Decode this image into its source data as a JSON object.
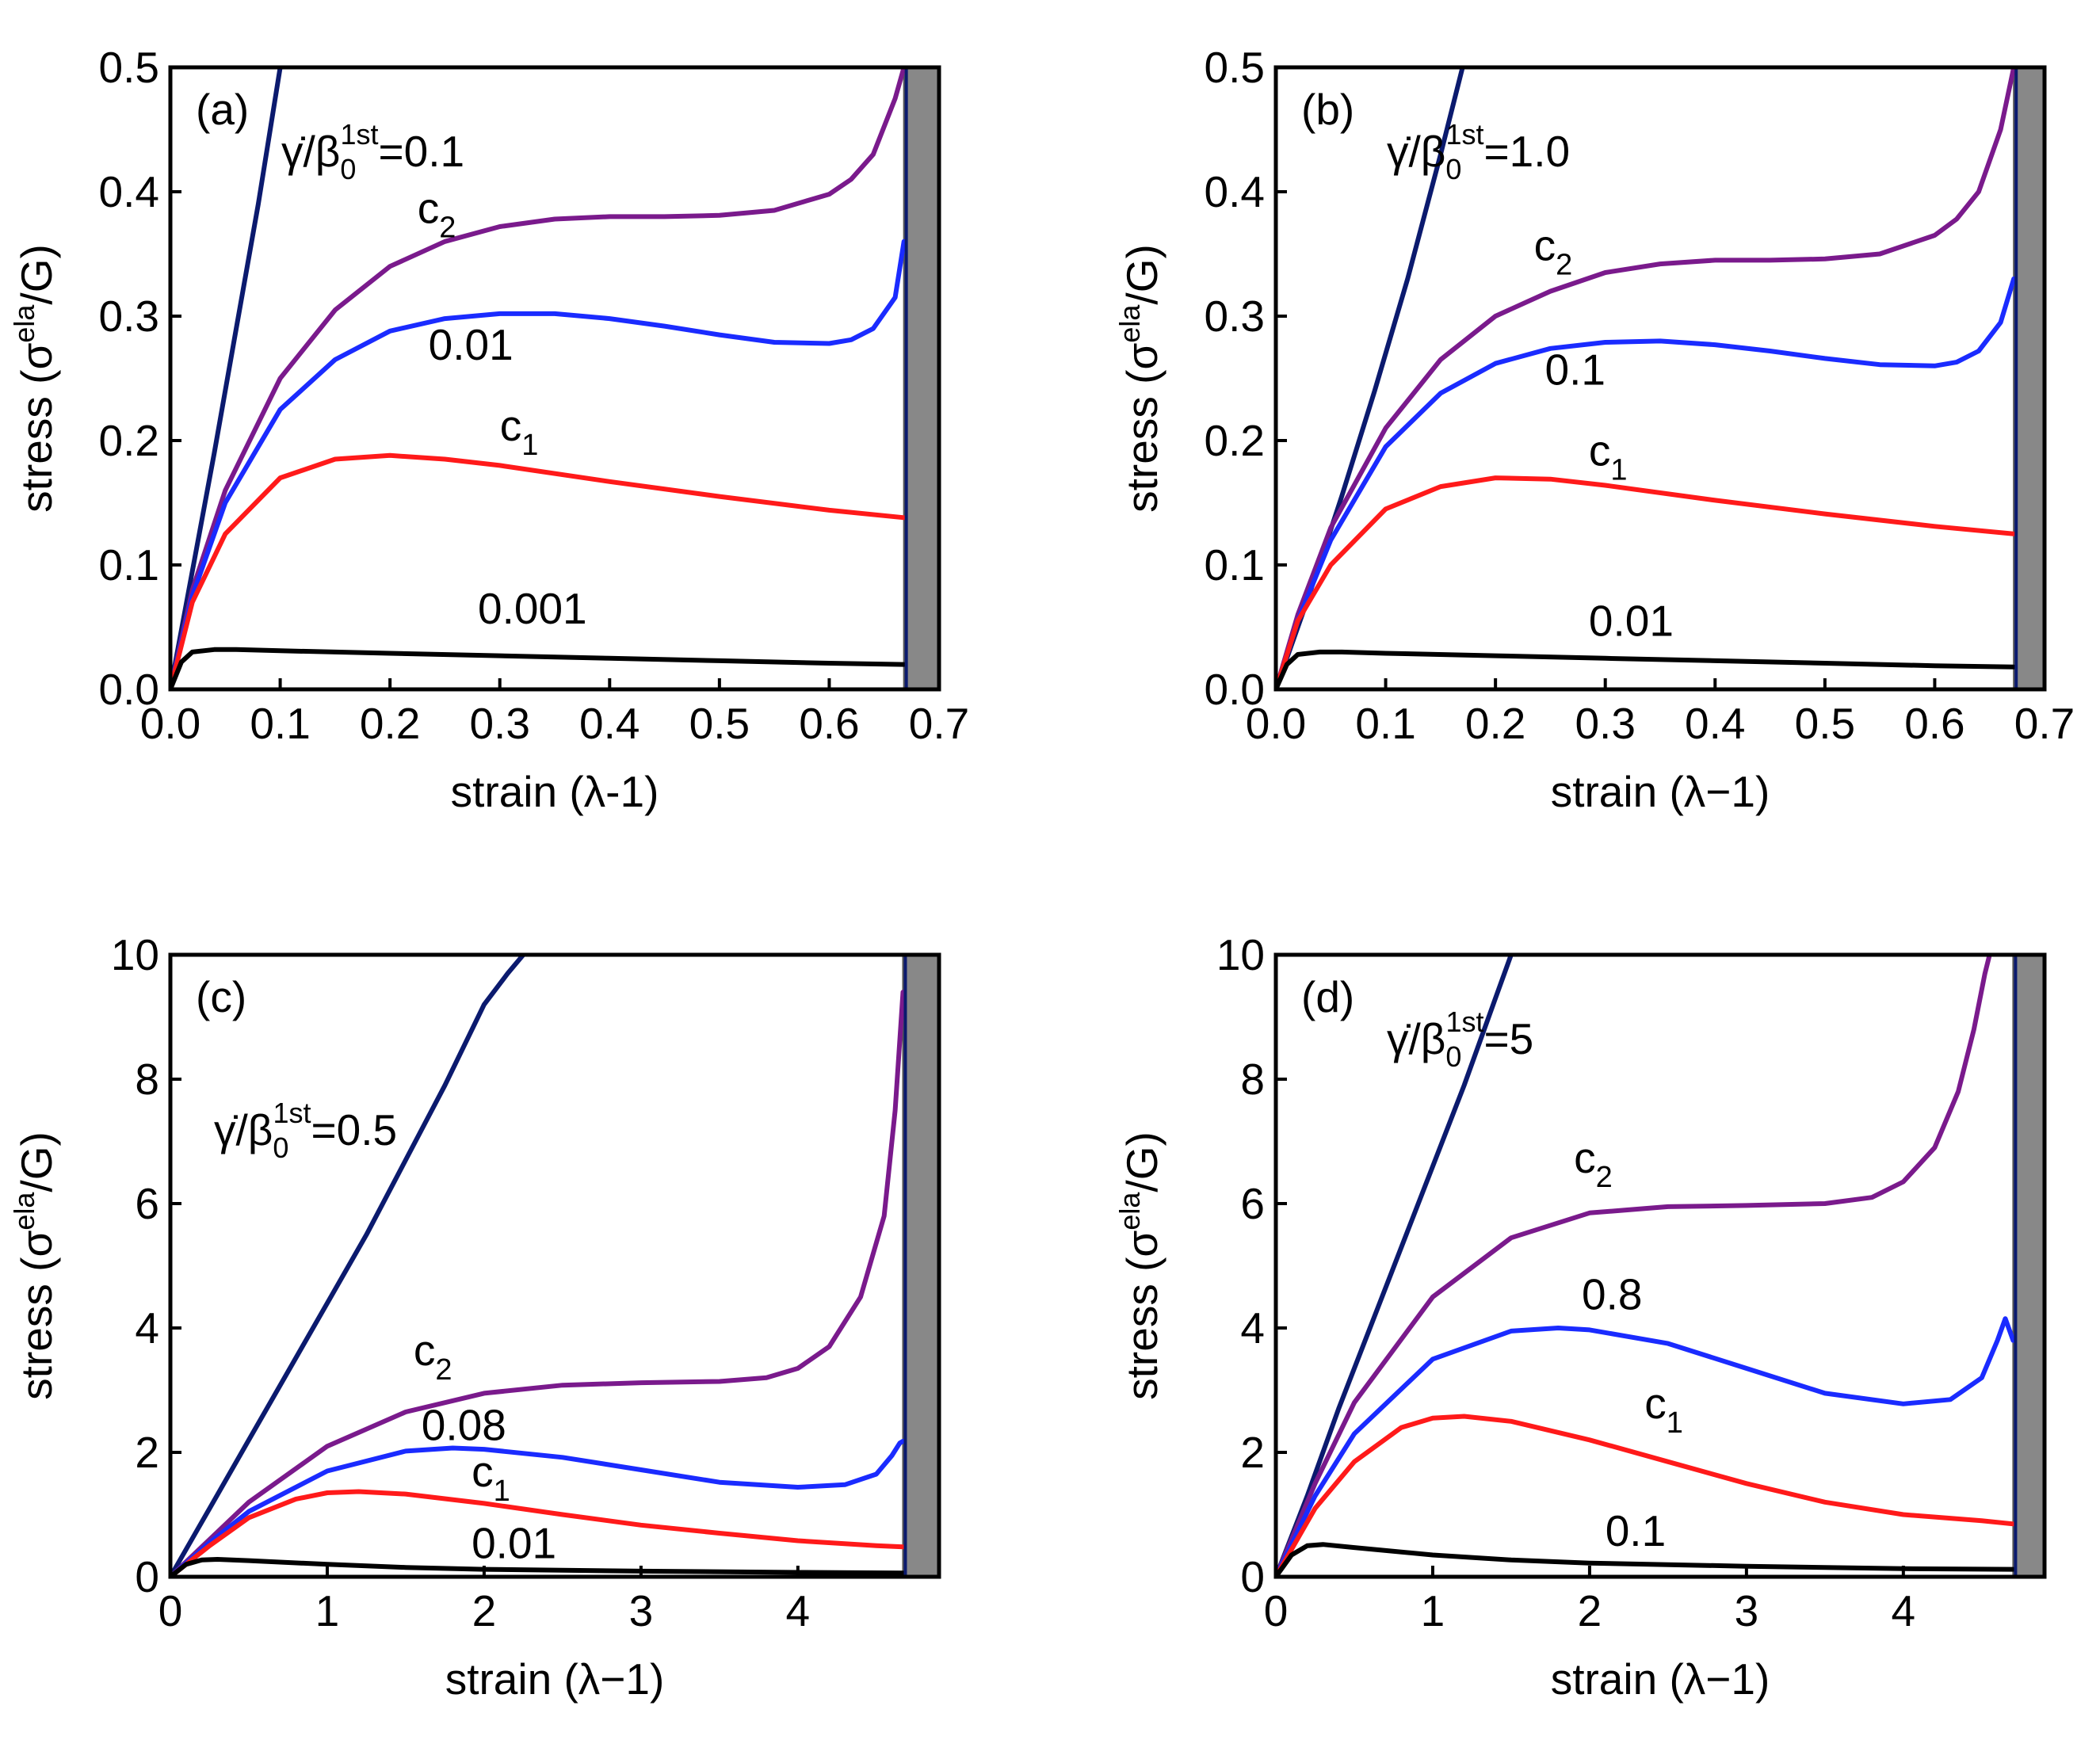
{
  "figure": "stress-strain panels",
  "colors": {
    "dark_navy": "#0b1a6e",
    "purple": "#7a1a8c",
    "blue": "#1a2bff",
    "red": "#ff1a1a",
    "black": "#000000",
    "shade": "#888888"
  },
  "chart_data": [
    {
      "type": "line",
      "panel_label": "(a)",
      "rate_label": "γ̇/β₀^1st=0.1",
      "xlabel": "strain (λ-1)",
      "ylabel": "stress (σ^ela/G)",
      "xlim": [
        0,
        0.7
      ],
      "ylim": [
        0,
        0.5
      ],
      "xticks": [
        "0.0",
        "0.1",
        "0.2",
        "0.3",
        "0.4",
        "0.5",
        "0.6",
        "0.7"
      ],
      "yticks": [
        "0.0",
        "0.1",
        "0.2",
        "0.3",
        "0.4",
        "0.5"
      ],
      "shaded_region": [
        0.668,
        0.7
      ],
      "series": [
        {
          "name": "dark",
          "color": "#0b1a6e",
          "x": [
            0,
            0.02,
            0.04,
            0.06,
            0.08,
            0.1
          ],
          "y": [
            0,
            0.095,
            0.19,
            0.29,
            0.39,
            0.5
          ]
        },
        {
          "name": "c2",
          "color": "#7a1a8c",
          "x": [
            0,
            0.02,
            0.05,
            0.1,
            0.15,
            0.2,
            0.25,
            0.3,
            0.35,
            0.4,
            0.45,
            0.5,
            0.55,
            0.6,
            0.62,
            0.64,
            0.66,
            0.668
          ],
          "y": [
            0,
            0.08,
            0.16,
            0.25,
            0.305,
            0.34,
            0.36,
            0.372,
            0.378,
            0.38,
            0.38,
            0.381,
            0.385,
            0.398,
            0.41,
            0.43,
            0.475,
            0.5
          ]
        },
        {
          "name": "0.01",
          "color": "#1a2bff",
          "x": [
            0,
            0.02,
            0.05,
            0.1,
            0.15,
            0.2,
            0.25,
            0.3,
            0.35,
            0.4,
            0.45,
            0.5,
            0.55,
            0.6,
            0.62,
            0.64,
            0.66,
            0.668
          ],
          "y": [
            0,
            0.075,
            0.15,
            0.225,
            0.265,
            0.288,
            0.298,
            0.302,
            0.302,
            0.298,
            0.292,
            0.285,
            0.279,
            0.278,
            0.281,
            0.29,
            0.315,
            0.36
          ]
        },
        {
          "name": "c1",
          "color": "#ff1a1a",
          "x": [
            0,
            0.02,
            0.05,
            0.1,
            0.15,
            0.2,
            0.25,
            0.3,
            0.4,
            0.5,
            0.6,
            0.668
          ],
          "y": [
            0,
            0.07,
            0.125,
            0.17,
            0.185,
            0.188,
            0.185,
            0.18,
            0.167,
            0.155,
            0.144,
            0.138
          ]
        },
        {
          "name": "0.001",
          "color": "#000000",
          "x": [
            0,
            0.01,
            0.02,
            0.04,
            0.06,
            0.1,
            0.2,
            0.3,
            0.4,
            0.5,
            0.6,
            0.668
          ],
          "y": [
            0,
            0.022,
            0.03,
            0.032,
            0.032,
            0.031,
            0.029,
            0.027,
            0.025,
            0.023,
            0.021,
            0.02
          ]
        }
      ],
      "labels": [
        {
          "text": "c",
          "sub": "2",
          "x": 0.225,
          "y": 0.375
        },
        {
          "text": "0.01",
          "sub": "",
          "x": 0.235,
          "y": 0.265
        },
        {
          "text": "c",
          "sub": "1",
          "x": 0.3,
          "y": 0.2
        },
        {
          "text": "0.001",
          "sub": "",
          "x": 0.28,
          "y": 0.053
        }
      ]
    },
    {
      "type": "line",
      "panel_label": "(b)",
      "rate_label": "γ̇/β₀^1st=1.0",
      "xlabel": "strain (λ−1)",
      "ylabel": "stress (σ^ela/G)",
      "xlim": [
        0,
        0.7
      ],
      "ylim": [
        0,
        0.5
      ],
      "xticks": [
        "0.0",
        "0.1",
        "0.2",
        "0.3",
        "0.4",
        "0.5",
        "0.6",
        "0.7"
      ],
      "yticks": [
        "0.0",
        "0.1",
        "0.2",
        "0.3",
        "0.4",
        "0.5"
      ],
      "shaded_region": [
        0.672,
        0.7
      ],
      "series": [
        {
          "name": "dark",
          "color": "#0b1a6e",
          "x": [
            0,
            0.03,
            0.06,
            0.09,
            0.12,
            0.15,
            0.17
          ],
          "y": [
            0,
            0.075,
            0.155,
            0.24,
            0.33,
            0.43,
            0.5
          ]
        },
        {
          "name": "c2",
          "color": "#7a1a8c",
          "x": [
            0,
            0.02,
            0.05,
            0.1,
            0.15,
            0.2,
            0.25,
            0.3,
            0.35,
            0.4,
            0.45,
            0.5,
            0.55,
            0.6,
            0.62,
            0.64,
            0.66,
            0.672
          ],
          "y": [
            0,
            0.06,
            0.13,
            0.21,
            0.265,
            0.3,
            0.32,
            0.335,
            0.342,
            0.345,
            0.345,
            0.346,
            0.35,
            0.365,
            0.378,
            0.4,
            0.45,
            0.5
          ]
        },
        {
          "name": "0.1",
          "color": "#1a2bff",
          "x": [
            0,
            0.02,
            0.05,
            0.1,
            0.15,
            0.2,
            0.25,
            0.3,
            0.35,
            0.4,
            0.45,
            0.5,
            0.55,
            0.6,
            0.62,
            0.64,
            0.66,
            0.672
          ],
          "y": [
            0,
            0.055,
            0.12,
            0.195,
            0.238,
            0.262,
            0.274,
            0.279,
            0.28,
            0.277,
            0.272,
            0.266,
            0.261,
            0.26,
            0.263,
            0.272,
            0.295,
            0.33
          ]
        },
        {
          "name": "c1",
          "color": "#ff1a1a",
          "x": [
            0,
            0.02,
            0.05,
            0.1,
            0.15,
            0.2,
            0.25,
            0.3,
            0.4,
            0.5,
            0.6,
            0.672
          ],
          "y": [
            0,
            0.055,
            0.1,
            0.145,
            0.163,
            0.17,
            0.169,
            0.164,
            0.152,
            0.141,
            0.131,
            0.125
          ]
        },
        {
          "name": "0.01",
          "color": "#000000",
          "x": [
            0,
            0.01,
            0.02,
            0.04,
            0.06,
            0.1,
            0.2,
            0.3,
            0.4,
            0.5,
            0.6,
            0.672
          ],
          "y": [
            0,
            0.02,
            0.028,
            0.03,
            0.03,
            0.029,
            0.027,
            0.025,
            0.023,
            0.021,
            0.019,
            0.018
          ]
        }
      ],
      "labels": [
        {
          "text": "c",
          "sub": "2",
          "x": 0.235,
          "y": 0.345
        },
        {
          "text": "0.1",
          "sub": "",
          "x": 0.245,
          "y": 0.245
        },
        {
          "text": "c",
          "sub": "1",
          "x": 0.285,
          "y": 0.18
        },
        {
          "text": "0.01",
          "sub": "",
          "x": 0.285,
          "y": 0.043
        }
      ]
    },
    {
      "type": "line",
      "panel_label": "(c)",
      "rate_label": "γ̇/β₀^1st=0.5",
      "xlabel": "strain (λ−1)",
      "ylabel": "stress (σ^ela/G)",
      "xlim": [
        0,
        4.9
      ],
      "ylim": [
        0,
        10
      ],
      "xticks": [
        "0",
        "1",
        "2",
        "3",
        "4"
      ],
      "yticks": [
        "0",
        "2",
        "4",
        "6",
        "8",
        "10"
      ],
      "shaded_region": [
        4.67,
        4.9
      ],
      "series": [
        {
          "name": "dark",
          "color": "#0b1a6e",
          "x": [
            0,
            0.25,
            0.5,
            0.75,
            1.0,
            1.25,
            1.5,
            1.75,
            2.0,
            2.15,
            2.25
          ],
          "y": [
            0,
            1.1,
            2.2,
            3.3,
            4.4,
            5.5,
            6.7,
            7.9,
            9.2,
            9.7,
            10
          ]
        },
        {
          "name": "c2",
          "color": "#7a1a8c",
          "x": [
            0,
            0.25,
            0.5,
            1.0,
            1.5,
            2.0,
            2.5,
            3.0,
            3.5,
            3.8,
            4.0,
            4.2,
            4.4,
            4.55,
            4.62,
            4.67
          ],
          "y": [
            0,
            0.6,
            1.2,
            2.1,
            2.65,
            2.95,
            3.08,
            3.12,
            3.14,
            3.2,
            3.35,
            3.7,
            4.5,
            5.8,
            7.5,
            9.4
          ]
        },
        {
          "name": "0.08",
          "color": "#1a2bff",
          "x": [
            0,
            0.25,
            0.5,
            1.0,
            1.5,
            1.8,
            2.0,
            2.5,
            3.0,
            3.5,
            4.0,
            4.3,
            4.5,
            4.6,
            4.65,
            4.67
          ],
          "y": [
            0,
            0.55,
            1.05,
            1.7,
            2.02,
            2.07,
            2.05,
            1.92,
            1.72,
            1.52,
            1.44,
            1.48,
            1.65,
            1.95,
            2.15,
            2.18
          ]
        },
        {
          "name": "c1",
          "color": "#ff1a1a",
          "x": [
            0,
            0.25,
            0.5,
            0.8,
            1.0,
            1.2,
            1.5,
            2.0,
            2.5,
            3.0,
            3.5,
            4.0,
            4.5,
            4.67
          ],
          "y": [
            0,
            0.5,
            0.95,
            1.25,
            1.35,
            1.37,
            1.33,
            1.18,
            1.0,
            0.83,
            0.7,
            0.58,
            0.5,
            0.48
          ]
        },
        {
          "name": "0.01",
          "color": "#000000",
          "x": [
            0,
            0.1,
            0.2,
            0.3,
            0.5,
            1.0,
            1.5,
            2.0,
            3.0,
            4.0,
            4.67
          ],
          "y": [
            0,
            0.2,
            0.27,
            0.28,
            0.26,
            0.2,
            0.15,
            0.12,
            0.09,
            0.07,
            0.06
          ]
        }
      ],
      "labels": [
        {
          "text": "c",
          "sub": "2",
          "x": 1.55,
          "y": 3.4
        },
        {
          "text": "0.08",
          "sub": "",
          "x": 1.6,
          "y": 2.2
        },
        {
          "text": "c",
          "sub": "1",
          "x": 1.92,
          "y": 1.45
        },
        {
          "text": "0.01",
          "sub": "",
          "x": 1.92,
          "y": 0.3
        }
      ]
    },
    {
      "type": "line",
      "panel_label": "(d)",
      "rate_label": "γ̇/β₀^1st=5",
      "xlabel": "strain (λ−1)",
      "ylabel": "stress (σ^ela/G)",
      "xlim": [
        0,
        4.9
      ],
      "ylim": [
        0,
        10
      ],
      "xticks": [
        "0",
        "1",
        "2",
        "3",
        "4"
      ],
      "yticks": [
        "0",
        "2",
        "4",
        "6",
        "8",
        "10"
      ],
      "shaded_region": [
        4.7,
        4.9
      ],
      "series": [
        {
          "name": "dark",
          "color": "#0b1a6e",
          "x": [
            0,
            0.2,
            0.4,
            0.6,
            0.8,
            1.0,
            1.2,
            1.4,
            1.5
          ],
          "y": [
            0,
            1.3,
            2.7,
            4.0,
            5.3,
            6.6,
            7.9,
            9.3,
            10
          ]
        },
        {
          "name": "c2",
          "color": "#7a1a8c",
          "x": [
            0,
            0.25,
            0.5,
            1.0,
            1.5,
            2.0,
            2.5,
            3.0,
            3.5,
            3.8,
            4.0,
            4.2,
            4.35,
            4.45,
            4.52,
            4.55
          ],
          "y": [
            0,
            1.5,
            2.8,
            4.5,
            5.45,
            5.85,
            5.95,
            5.97,
            6.0,
            6.1,
            6.35,
            6.9,
            7.8,
            8.8,
            9.7,
            10
          ]
        },
        {
          "name": "0.8",
          "color": "#1a2bff",
          "x": [
            0,
            0.25,
            0.5,
            1.0,
            1.5,
            1.8,
            2.0,
            2.5,
            3.0,
            3.5,
            4.0,
            4.3,
            4.5,
            4.6,
            4.65,
            4.7
          ],
          "y": [
            0,
            1.3,
            2.3,
            3.5,
            3.95,
            4.0,
            3.97,
            3.75,
            3.35,
            2.95,
            2.78,
            2.85,
            3.2,
            3.8,
            4.15,
            3.8
          ]
        },
        {
          "name": "c1",
          "color": "#ff1a1a",
          "x": [
            0,
            0.25,
            0.5,
            0.8,
            1.0,
            1.2,
            1.5,
            2.0,
            2.5,
            3.0,
            3.5,
            4.0,
            4.5,
            4.7
          ],
          "y": [
            0,
            1.1,
            1.85,
            2.4,
            2.55,
            2.58,
            2.5,
            2.2,
            1.85,
            1.5,
            1.2,
            1.0,
            0.9,
            0.85
          ]
        },
        {
          "name": "0.1",
          "color": "#000000",
          "x": [
            0,
            0.1,
            0.2,
            0.3,
            0.5,
            1.0,
            1.5,
            2.0,
            3.0,
            4.0,
            4.7
          ],
          "y": [
            0,
            0.35,
            0.5,
            0.52,
            0.47,
            0.35,
            0.27,
            0.22,
            0.17,
            0.13,
            0.12
          ]
        }
      ],
      "labels": [
        {
          "text": "c",
          "sub": "2",
          "x": 1.9,
          "y": 6.5
        },
        {
          "text": "0.8",
          "sub": "",
          "x": 1.95,
          "y": 4.3
        },
        {
          "text": "c",
          "sub": "1",
          "x": 2.35,
          "y": 2.55
        },
        {
          "text": "0.1",
          "sub": "",
          "x": 2.1,
          "y": 0.5
        }
      ]
    }
  ]
}
